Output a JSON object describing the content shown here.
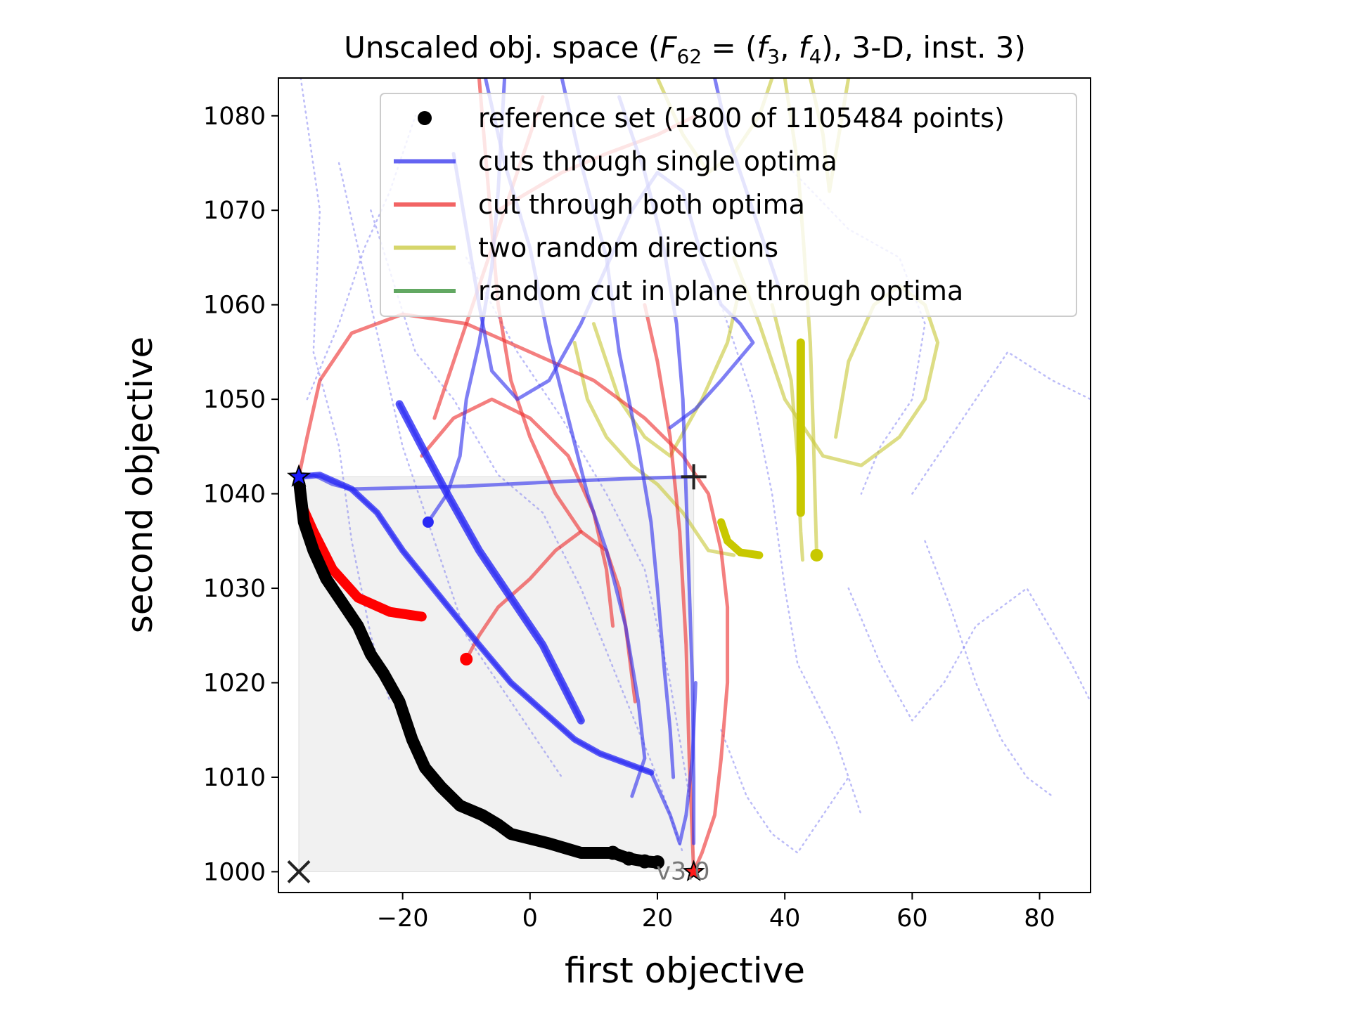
{
  "chart_data": {
    "type": "line",
    "title": "Unscaled obj. space (F62 = (f3, f4), 3-D, inst. 3)",
    "title_parts": {
      "prefix": "Unscaled obj. space (",
      "F": "F",
      "F_sub": "62",
      "eq": " = (",
      "f": "f",
      "f1_sub": "3",
      "comma": ", ",
      "f2_sub": "4",
      "suffix": "), 3-D, inst. 3)"
    },
    "xlabel": "first objective",
    "ylabel": "second objective",
    "xlim": [
      -39.5,
      88
    ],
    "ylim": [
      997.8,
      1084
    ],
    "x_ticks": [
      -20,
      0,
      20,
      40,
      60,
      80
    ],
    "x_tick_labels": [
      "−20",
      "0",
      "20",
      "40",
      "60",
      "80"
    ],
    "y_ticks": [
      1000,
      1010,
      1020,
      1030,
      1040,
      1050,
      1060,
      1070,
      1080
    ],
    "y_tick_labels": [
      "1000",
      "1010",
      "1020",
      "1030",
      "1040",
      "1050",
      "1060",
      "1070",
      "1080"
    ],
    "grid": false,
    "legend_position": "top-right",
    "legend": [
      {
        "label": "reference set (1800 of 1105484 points)",
        "color": "#000000",
        "kind": "marker"
      },
      {
        "label": "cuts through single optima",
        "color": "#3030ee",
        "kind": "line"
      },
      {
        "label": "cut through both optima",
        "color": "#ee3030",
        "kind": "line"
      },
      {
        "label": "two random directions",
        "color": "#c8c83a",
        "kind": "line"
      },
      {
        "label": "random cut in plane through optima",
        "color": "#2e8b2e",
        "kind": "line"
      }
    ],
    "version_label": "v3.0",
    "ideal_point": [
      -36.3,
      1000
    ],
    "nadir_point": [
      25.7,
      1041.8
    ],
    "optimum_1": [
      -36.3,
      1041.8
    ],
    "optimum_2": [
      25.7,
      1000
    ],
    "reference_set": [
      [
        -36.2,
        1041
      ],
      [
        -35.5,
        1037
      ],
      [
        -34,
        1034
      ],
      [
        -32,
        1031
      ],
      [
        -29,
        1028
      ],
      [
        -27,
        1026
      ],
      [
        -25,
        1023
      ],
      [
        -23,
        1021
      ],
      [
        -20.5,
        1018
      ],
      [
        -18.5,
        1014
      ],
      [
        -16.5,
        1011
      ],
      [
        -14,
        1009
      ],
      [
        -11,
        1007
      ],
      [
        -7.5,
        1006
      ],
      [
        -5,
        1005
      ],
      [
        -3,
        1004
      ],
      [
        0,
        1003.5
      ],
      [
        3,
        1003
      ],
      [
        5.5,
        1002.5
      ],
      [
        8,
        1002
      ],
      [
        10,
        1002
      ],
      [
        13,
        1002
      ],
      [
        15.5,
        1001.4
      ],
      [
        18,
        1001.1
      ],
      [
        20,
        1001
      ]
    ],
    "dotted_cuts": [
      [
        [
          -36,
          1084
        ],
        [
          -33,
          1070
        ],
        [
          -34,
          1055
        ],
        [
          -30,
          1045
        ],
        [
          -28,
          1035
        ],
        [
          -25,
          1025
        ],
        [
          -22,
          1018
        ]
      ],
      [
        [
          -30,
          1075
        ],
        [
          -25,
          1060
        ],
        [
          -20,
          1045
        ],
        [
          -15,
          1035
        ],
        [
          -10,
          1025
        ],
        [
          -5,
          1020
        ],
        [
          0,
          1015
        ],
        [
          5,
          1010
        ]
      ],
      [
        [
          -25,
          1070
        ],
        [
          -18,
          1055
        ],
        [
          -12,
          1050
        ],
        [
          -5,
          1042
        ],
        [
          2,
          1038
        ],
        [
          8,
          1030
        ],
        [
          14,
          1020
        ],
        [
          20,
          1010
        ],
        [
          24,
          1002
        ]
      ],
      [
        [
          -10,
          1065
        ],
        [
          -2,
          1055
        ],
        [
          5,
          1048
        ],
        [
          12,
          1040
        ],
        [
          18,
          1032
        ],
        [
          22,
          1020
        ],
        [
          25,
          1008
        ]
      ],
      [
        [
          30,
          1060
        ],
        [
          35,
          1050
        ],
        [
          38,
          1040
        ],
        [
          40,
          1030
        ],
        [
          42,
          1022
        ],
        [
          48,
          1014
        ],
        [
          52,
          1006
        ]
      ],
      [
        [
          40,
          1075
        ],
        [
          50,
          1068
        ],
        [
          58,
          1065
        ],
        [
          62,
          1058
        ],
        [
          60,
          1050
        ],
        [
          55,
          1045
        ],
        [
          52,
          1040
        ]
      ],
      [
        [
          50,
          1030
        ],
        [
          55,
          1022
        ],
        [
          60,
          1016
        ],
        [
          65,
          1020
        ],
        [
          70,
          1026
        ],
        [
          78,
          1030
        ],
        [
          85,
          1022
        ],
        [
          88,
          1018
        ]
      ],
      [
        [
          60,
          1040
        ],
        [
          68,
          1048
        ],
        [
          75,
          1055
        ],
        [
          82,
          1052
        ],
        [
          88,
          1050
        ]
      ],
      [
        [
          62,
          1035
        ],
        [
          66,
          1028
        ],
        [
          70,
          1020
        ],
        [
          74,
          1014
        ],
        [
          78,
          1010
        ],
        [
          82,
          1008
        ]
      ],
      [
        [
          30,
          1015
        ],
        [
          34,
          1008
        ],
        [
          38,
          1004
        ],
        [
          42,
          1002
        ],
        [
          46,
          1006
        ],
        [
          50,
          1010
        ]
      ],
      [
        [
          -35,
          1050
        ],
        [
          -30,
          1058
        ],
        [
          -26,
          1066
        ],
        [
          -22,
          1072
        ],
        [
          -18,
          1080
        ]
      ]
    ],
    "blue_cuts": [
      [
        [
          -36.3,
          1041.8
        ],
        [
          -34,
          1042
        ],
        [
          -31,
          1041
        ],
        [
          -28,
          1040.5
        ],
        [
          -10,
          1040.8
        ],
        [
          5,
          1041.3
        ],
        [
          15,
          1041.6
        ],
        [
          25.7,
          1041.8
        ]
      ],
      [
        [
          -36.3,
          1041.8
        ],
        [
          -33,
          1042
        ],
        [
          -28,
          1040.5
        ],
        [
          -24,
          1038
        ],
        [
          -20,
          1034
        ],
        [
          -14,
          1029
        ],
        [
          -8,
          1024
        ],
        [
          -3,
          1020
        ],
        [
          2,
          1017
        ],
        [
          7,
          1014
        ],
        [
          11,
          1012.5
        ],
        [
          15,
          1011.5
        ],
        [
          19,
          1010.5
        ],
        [
          22,
          1006
        ],
        [
          23.5,
          1003
        ],
        [
          24.5,
          1006
        ],
        [
          25.5,
          1012
        ],
        [
          26,
          1020
        ]
      ],
      [
        [
          -20.5,
          1049.5
        ],
        [
          -17,
          1045
        ],
        [
          -13,
          1040
        ],
        [
          -8,
          1034
        ],
        [
          -3,
          1029
        ],
        [
          2,
          1024
        ],
        [
          5,
          1020
        ],
        [
          8,
          1016
        ]
      ],
      [
        [
          -16,
          1037
        ],
        [
          -13,
          1040
        ],
        [
          -11,
          1044
        ],
        [
          -10,
          1050
        ],
        [
          -8,
          1056
        ],
        [
          -6,
          1064
        ],
        [
          -5,
          1072
        ],
        [
          -4,
          1084
        ]
      ],
      [
        [
          -12,
          1076
        ],
        [
          -10,
          1068
        ],
        [
          -8,
          1060
        ],
        [
          -6,
          1053
        ],
        [
          -2,
          1050
        ],
        [
          3,
          1052
        ],
        [
          8,
          1058
        ],
        [
          12,
          1064
        ],
        [
          16,
          1070
        ],
        [
          20,
          1074
        ],
        [
          24,
          1072
        ],
        [
          27,
          1065
        ],
        [
          30,
          1060
        ],
        [
          33,
          1058
        ],
        [
          35,
          1056
        ],
        [
          30,
          1052
        ],
        [
          26,
          1049
        ],
        [
          22,
          1047
        ]
      ],
      [
        [
          -7,
          1084
        ],
        [
          -4,
          1075
        ],
        [
          0,
          1066
        ],
        [
          3,
          1056
        ],
        [
          6,
          1048
        ],
        [
          9,
          1040
        ],
        [
          12,
          1034
        ],
        [
          15,
          1026
        ],
        [
          17,
          1018
        ],
        [
          18,
          1012
        ],
        [
          16,
          1008
        ]
      ],
      [
        [
          5,
          1084
        ],
        [
          8,
          1075
        ],
        [
          12,
          1065
        ],
        [
          14,
          1055
        ],
        [
          17,
          1045
        ],
        [
          19,
          1037
        ],
        [
          20,
          1030
        ],
        [
          21,
          1022
        ],
        [
          22,
          1015
        ],
        [
          22.5,
          1010
        ]
      ],
      [
        [
          14,
          1082
        ],
        [
          18,
          1074
        ],
        [
          21,
          1066
        ],
        [
          23,
          1058
        ],
        [
          24,
          1050
        ],
        [
          24.5,
          1040
        ],
        [
          25,
          1030
        ],
        [
          25.5,
          1020
        ],
        [
          25.7,
          1010
        ],
        [
          25.7,
          1003
        ]
      ],
      [
        [
          29,
          1084
        ],
        [
          31,
          1078
        ],
        [
          34,
          1072
        ],
        [
          37,
          1066
        ],
        [
          39,
          1062
        ]
      ]
    ],
    "red_cuts": [
      [
        [
          -36.3,
          1041.8
        ],
        [
          -36,
          1039
        ],
        [
          -34,
          1036
        ],
        [
          -31,
          1032
        ],
        [
          -27,
          1029
        ],
        [
          -22,
          1027.5
        ],
        [
          -17,
          1027
        ]
      ],
      [
        [
          -36.3,
          1041.8
        ],
        [
          -35,
          1046
        ],
        [
          -33,
          1052
        ],
        [
          -28,
          1057
        ],
        [
          -20,
          1059
        ],
        [
          -10,
          1058
        ],
        [
          0,
          1055
        ],
        [
          10,
          1052
        ],
        [
          18,
          1048
        ],
        [
          24,
          1044
        ],
        [
          28,
          1040
        ],
        [
          30,
          1034
        ],
        [
          31,
          1028
        ],
        [
          31,
          1020
        ],
        [
          30,
          1012
        ],
        [
          29,
          1006
        ],
        [
          27,
          1002
        ],
        [
          25.7,
          1000
        ]
      ],
      [
        [
          -10,
          1022.5
        ],
        [
          -8,
          1025
        ],
        [
          -5,
          1028
        ],
        [
          0,
          1031
        ],
        [
          4,
          1034
        ],
        [
          8,
          1036
        ],
        [
          12,
          1034
        ],
        [
          14,
          1030
        ],
        [
          15,
          1026
        ],
        [
          16.5,
          1018
        ]
      ],
      [
        [
          -15,
          1048
        ],
        [
          -12,
          1054
        ],
        [
          -9,
          1060
        ],
        [
          -6,
          1066
        ],
        [
          -3,
          1072
        ],
        [
          0,
          1078
        ],
        [
          2,
          1082
        ]
      ],
      [
        [
          -17,
          1044
        ],
        [
          -12,
          1048
        ],
        [
          -6,
          1050
        ],
        [
          0,
          1048
        ],
        [
          6,
          1044
        ],
        [
          10,
          1038
        ],
        [
          12,
          1032
        ],
        [
          13,
          1026
        ]
      ],
      [
        [
          -8,
          1084
        ],
        [
          -7,
          1076
        ],
        [
          -6,
          1068
        ],
        [
          -5,
          1060
        ],
        [
          -3,
          1052
        ],
        [
          0,
          1046
        ],
        [
          4,
          1040
        ],
        [
          8,
          1036
        ]
      ],
      [
        [
          18,
          1060
        ],
        [
          20,
          1054
        ],
        [
          22,
          1046
        ],
        [
          23.5,
          1036
        ],
        [
          24.5,
          1024
        ],
        [
          25,
          1012
        ],
        [
          25.7,
          1000
        ]
      ],
      [
        [
          -5,
          1070
        ],
        [
          0,
          1072
        ],
        [
          5,
          1074
        ],
        [
          12,
          1076
        ],
        [
          20,
          1078
        ],
        [
          26,
          1080
        ]
      ]
    ],
    "yellow_cuts": [
      [
        [
          7,
          1056
        ],
        [
          9,
          1050
        ],
        [
          12,
          1046
        ],
        [
          16,
          1043
        ],
        [
          20,
          1041
        ],
        [
          24,
          1038
        ],
        [
          26,
          1036
        ],
        [
          28,
          1034
        ],
        [
          32,
          1033.5
        ]
      ],
      [
        [
          20,
          1084
        ],
        [
          24,
          1078
        ],
        [
          28,
          1074
        ],
        [
          32,
          1076
        ],
        [
          36,
          1080
        ],
        [
          38,
          1084
        ]
      ],
      [
        [
          40,
          1084
        ],
        [
          42,
          1075
        ],
        [
          43,
          1066
        ],
        [
          44,
          1056
        ],
        [
          44.5,
          1046
        ],
        [
          44.8,
          1038
        ],
        [
          45,
          1033.5
        ]
      ],
      [
        [
          38,
          1060
        ],
        [
          41,
          1052
        ],
        [
          42,
          1044
        ],
        [
          42.5,
          1036
        ],
        [
          42.8,
          1033
        ]
      ],
      [
        [
          32,
          1065
        ],
        [
          36,
          1058
        ],
        [
          40,
          1050
        ],
        [
          46,
          1044
        ],
        [
          52,
          1043
        ],
        [
          58,
          1046
        ],
        [
          62,
          1050
        ],
        [
          64,
          1056
        ],
        [
          62,
          1060
        ],
        [
          58,
          1062
        ],
        [
          54,
          1060
        ],
        [
          50,
          1054
        ],
        [
          48,
          1046
        ]
      ],
      [
        [
          10,
          1058
        ],
        [
          14,
          1050
        ],
        [
          18,
          1046
        ],
        [
          22,
          1044
        ],
        [
          27,
          1050
        ],
        [
          31,
          1056
        ],
        [
          33,
          1062
        ]
      ],
      [
        [
          44,
          1084
        ],
        [
          46,
          1078
        ],
        [
          47,
          1072
        ],
        [
          48,
          1076
        ],
        [
          49,
          1080
        ],
        [
          50,
          1084
        ]
      ]
    ]
  }
}
